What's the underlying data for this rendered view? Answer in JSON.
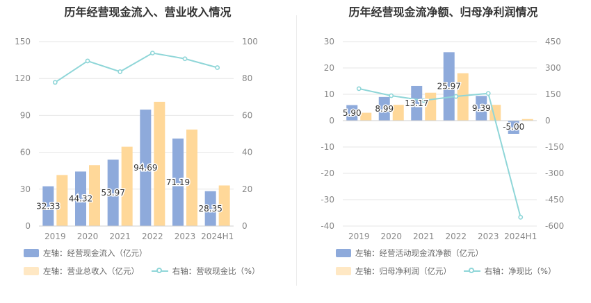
{
  "chart_data": [
    {
      "type": "bar",
      "title": "历年经营现金流入、营业收入情况",
      "categories": [
        "2019",
        "2020",
        "2021",
        "2022",
        "2023",
        "2024H1"
      ],
      "left_axis": {
        "ylim": [
          0,
          150
        ],
        "ticks": [
          "0",
          "30",
          "60",
          "90",
          "120",
          "150"
        ]
      },
      "right_axis": {
        "ylim": [
          0,
          100
        ],
        "ticks": [
          "0",
          "20",
          "40",
          "60",
          "80",
          "100"
        ]
      },
      "series": [
        {
          "name": "左轴：经营现金流入（亿元）",
          "type": "bar",
          "axis": "left",
          "color": "#8eaadb",
          "values": [
            32.33,
            44.32,
            53.97,
            94.69,
            71.19,
            28.35
          ],
          "labels": [
            "32.33",
            "44.32",
            "53.97",
            "94.69",
            "71.19",
            "28.35"
          ]
        },
        {
          "name": "左轴：营业总收入（亿元）",
          "type": "bar",
          "axis": "left",
          "color": "#ffd899",
          "values": [
            41.5,
            49.5,
            64.5,
            101.0,
            78.5,
            33.0
          ]
        },
        {
          "name": "右轴：营收现金比（%）",
          "type": "line",
          "axis": "right",
          "color": "#8fd6d8",
          "values": [
            77.9,
            89.5,
            83.7,
            93.8,
            90.7,
            85.9
          ]
        }
      ],
      "grid": true,
      "legend": "bottom"
    },
    {
      "type": "bar",
      "title": "历年经营现金流净额、归母净利润情况",
      "categories": [
        "2019",
        "2020",
        "2021",
        "2022",
        "2023",
        "2024H1"
      ],
      "left_axis": {
        "ylim": [
          -40,
          30
        ],
        "ticks": [
          "-40",
          "-30",
          "-20",
          "-10",
          "0",
          "10",
          "20",
          "30"
        ]
      },
      "right_axis": {
        "ylim": [
          -600,
          450
        ],
        "ticks": [
          "-600",
          "-450",
          "-300",
          "-150",
          "0",
          "150",
          "300",
          "450"
        ]
      },
      "series": [
        {
          "name": "左轴：经营活动现金流净额（亿元）",
          "type": "bar",
          "axis": "left",
          "color": "#8eaadb",
          "values": [
            5.9,
            8.99,
            13.17,
            25.97,
            9.39,
            -5.0
          ],
          "labels": [
            "5.90",
            "8.99",
            "13.17",
            "25.97",
            "9.39",
            "-5.00"
          ]
        },
        {
          "name": "左轴：归母净利润（亿元）",
          "type": "bar",
          "axis": "left",
          "color": "#ffd899",
          "values": [
            3.0,
            6.0,
            10.6,
            18.0,
            6.0,
            0.6
          ]
        },
        {
          "name": "右轴：净现比（%）",
          "type": "line",
          "axis": "right",
          "color": "#8fd6d8",
          "values": [
            182,
            142,
            115,
            138,
            155,
            -550
          ]
        }
      ],
      "grid": true,
      "legend": "bottom"
    }
  ]
}
